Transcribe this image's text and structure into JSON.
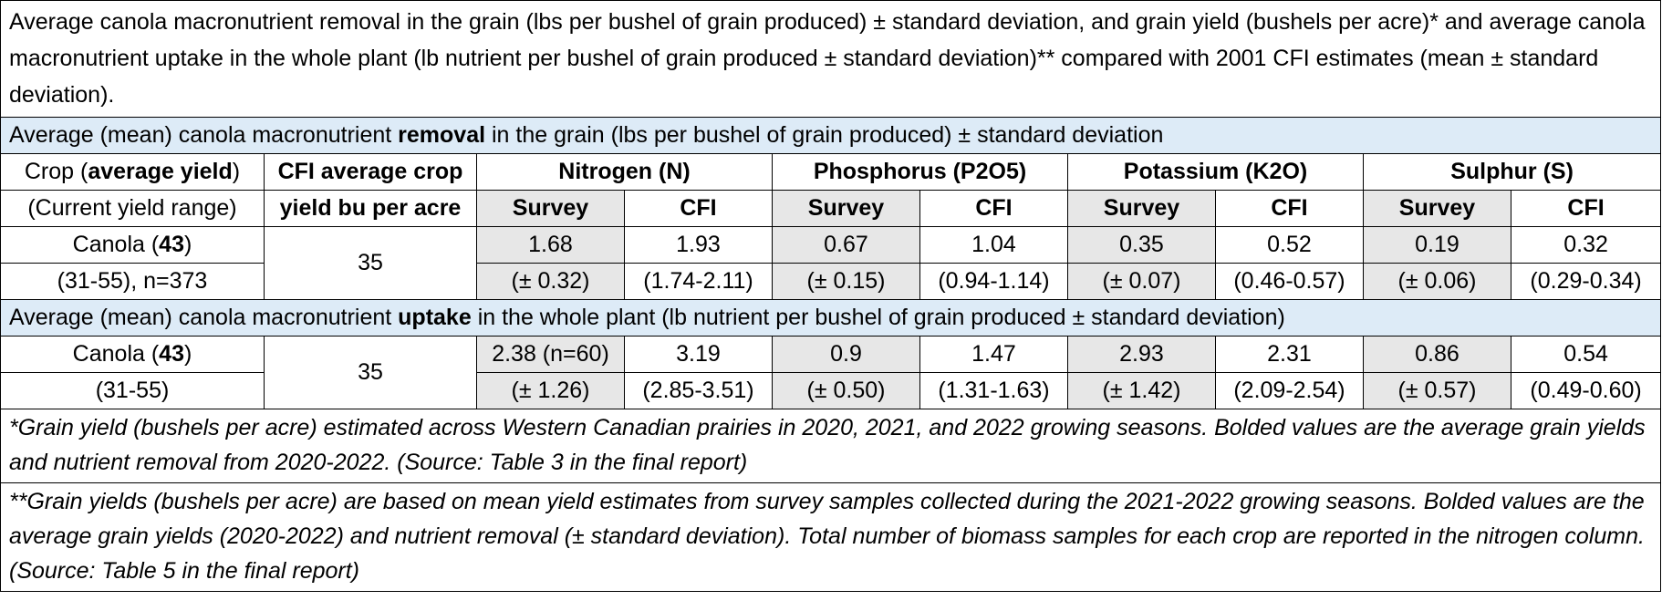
{
  "title": "Average canola macronutrient removal in the grain (lbs per bushel of grain produced) ± standard deviation, and grain yield (bushels per acre)* and average canola macronutrient uptake in the whole plant (lb nutrient per bushel of grain produced ± standard deviation)** compared with 2001 CFI estimates (mean ± standard deviation).",
  "removal_section": {
    "prefix": "Average (mean) canola macronutrient ",
    "bold": "removal",
    "suffix": " in the grain (lbs per bushel of grain produced) ± standard deviation"
  },
  "header": {
    "crop_line1_prefix": "Crop (",
    "crop_line1_bold": "average yield",
    "crop_line1_suffix": ")",
    "crop_line2": "(Current yield range)",
    "cfi_line1": "CFI average crop",
    "cfi_line2": "yield bu per acre",
    "nitrogen": "Nitrogen (N)",
    "phosphorus": "Phosphorus (P2O5)",
    "potassium": "Potassium (K2O)",
    "sulphur": "Sulphur (S)",
    "survey": "Survey",
    "cfi": "CFI"
  },
  "removal_row": {
    "crop_name": "Canola (",
    "crop_yield": "43",
    "crop_close": ")",
    "crop_range": "(31-55), n=373",
    "cfi_yield": "35",
    "values": [
      "1.68",
      "1.93",
      "0.67",
      "1.04",
      "0.35",
      "0.52",
      "0.19",
      "0.32"
    ],
    "ranges": [
      "(± 0.32)",
      "(1.74-2.11)",
      "(± 0.15)",
      "(0.94-1.14)",
      "(± 0.07)",
      "(0.46-0.57)",
      "(± 0.06)",
      "(0.29-0.34)"
    ]
  },
  "uptake_section": {
    "prefix": "Average (mean) canola macronutrient ",
    "bold": "uptake",
    "suffix": " in the whole plant (lb nutrient per bushel of grain produced ± standard deviation)"
  },
  "uptake_row": {
    "crop_name": "Canola (",
    "crop_yield": "43",
    "crop_close": ")",
    "crop_range": "(31-55)",
    "cfi_yield": "35",
    "values": [
      "2.38 (n=60)",
      "3.19",
      "0.9",
      "1.47",
      "2.93",
      "2.31",
      "0.86",
      "0.54"
    ],
    "ranges": [
      "(± 1.26)",
      "(2.85-3.51)",
      "(± 0.50)",
      "(1.31-1.63)",
      "(± 1.42)",
      "(2.09-2.54)",
      "(± 0.57)",
      "(0.49-0.60)"
    ]
  },
  "footnotes": [
    "*Grain yield (bushels per acre) estimated across Western Canadian prairies in 2020, 2021, and 2022 growing seasons. Bolded values are the average grain yields and nutrient removal from 2020-2022. (Source: Table 3 in the final report)",
    "**Grain yields (bushels per acre) are based on mean yield estimates from survey samples collected during the 2021-2022 growing seasons. Bolded values are the average grain yields (2020-2022) and nutrient removal (± standard deviation). Total number of biomass samples for each crop are reported in the nitrogen column. (Source: Table 5 in the final report)"
  ],
  "colors": {
    "section_bg": "#ddebf7",
    "survey_bg": "#e7e7e7"
  }
}
